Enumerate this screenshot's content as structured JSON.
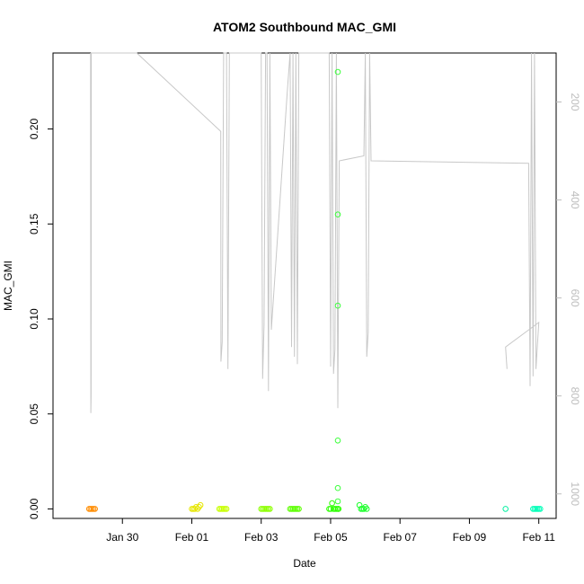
{
  "chart_data": {
    "type": "scatter",
    "title": "ATOM2 Southbound MAC_GMI",
    "xlabel": "Date",
    "ylabel": "MAC_GMI",
    "xlim": [
      "2019-01-28T00:00",
      "2019-02-11T12:00"
    ],
    "ylim": [
      -0.005,
      0.24
    ],
    "x_ticks": [
      {
        "value": "2019-01-30",
        "label": "Jan 30"
      },
      {
        "value": "2019-02-01",
        "label": "Feb 01"
      },
      {
        "value": "2019-02-03",
        "label": "Feb 03"
      },
      {
        "value": "2019-02-05",
        "label": "Feb 05"
      },
      {
        "value": "2019-02-07",
        "label": "Feb 07"
      },
      {
        "value": "2019-02-09",
        "label": "Feb 09"
      },
      {
        "value": "2019-02-11",
        "label": "Feb 11"
      }
    ],
    "y_ticks": [
      {
        "value": 0.0,
        "label": "0.00"
      },
      {
        "value": 0.05,
        "label": "0.05"
      },
      {
        "value": 0.1,
        "label": "0.10"
      },
      {
        "value": 0.15,
        "label": "0.15"
      },
      {
        "value": 0.2,
        "label": "0.20"
      }
    ],
    "right_axis": {
      "label": "",
      "range": [
        1050,
        100
      ],
      "ticks": [
        {
          "value": 200,
          "label": "200"
        },
        {
          "value": 400,
          "label": "400"
        },
        {
          "value": 600,
          "label": "600"
        },
        {
          "value": 800,
          "label": "800"
        },
        {
          "value": 1000,
          "label": "1000"
        }
      ],
      "color": "#bdbdbd"
    },
    "series": [
      {
        "color": "#ff8c00",
        "points": [
          [
            "2019-01-29T01:00",
            0.0
          ],
          [
            "2019-01-29T02:00",
            0.0
          ],
          [
            "2019-01-29T03:00",
            0.0
          ],
          [
            "2019-01-29T04:00",
            0.0
          ],
          [
            "2019-01-29T05:00",
            0.0
          ]
        ]
      },
      {
        "color": "#e6e600",
        "points": [
          [
            "2019-02-01T00:00",
            0.0
          ],
          [
            "2019-02-01T01:00",
            0.0
          ],
          [
            "2019-02-01T02:00",
            0.0
          ],
          [
            "2019-02-01T03:00",
            0.001
          ],
          [
            "2019-02-01T04:00",
            0.0
          ],
          [
            "2019-02-01T05:00",
            0.001
          ],
          [
            "2019-02-01T06:00",
            0.002
          ]
        ]
      },
      {
        "color": "#c8ff00",
        "points": [
          [
            "2019-02-01T19:00",
            0.0
          ],
          [
            "2019-02-01T20:00",
            0.0
          ],
          [
            "2019-02-01T21:00",
            0.0
          ],
          [
            "2019-02-01T22:00",
            0.0
          ],
          [
            "2019-02-01T23:00",
            0.0
          ],
          [
            "2019-02-02T00:00",
            0.0
          ]
        ]
      },
      {
        "color": "#8cff00",
        "points": [
          [
            "2019-02-03T00:00",
            0.0
          ],
          [
            "2019-02-03T01:00",
            0.0
          ],
          [
            "2019-02-03T02:00",
            0.0
          ],
          [
            "2019-02-03T03:00",
            0.0
          ],
          [
            "2019-02-03T04:00",
            0.0
          ],
          [
            "2019-02-03T05:00",
            0.0
          ],
          [
            "2019-02-03T06:00",
            0.0
          ]
        ]
      },
      {
        "color": "#5cff00",
        "points": [
          [
            "2019-02-03T20:00",
            0.0
          ],
          [
            "2019-02-03T21:00",
            0.0
          ],
          [
            "2019-02-03T22:00",
            0.0
          ],
          [
            "2019-02-03T23:00",
            0.0
          ],
          [
            "2019-02-04T00:00",
            0.0
          ],
          [
            "2019-02-04T01:00",
            0.0
          ],
          [
            "2019-02-04T02:00",
            0.0
          ]
        ]
      },
      {
        "color": "#2cff00",
        "points": [
          [
            "2019-02-04T23:00",
            0.0
          ],
          [
            "2019-02-05T00:00",
            0.0
          ],
          [
            "2019-02-05T01:00",
            0.003
          ],
          [
            "2019-02-05T02:00",
            0.0
          ],
          [
            "2019-02-05T03:00",
            0.0
          ],
          [
            "2019-02-05T04:00",
            0.0
          ],
          [
            "2019-02-05T05:00",
            0.0
          ],
          [
            "2019-02-05T05:30",
            0.0
          ]
        ]
      },
      {
        "color": "#3cff3c",
        "points": [
          [
            "2019-02-05T05:00",
            0.23
          ],
          [
            "2019-02-05T05:00",
            0.155
          ],
          [
            "2019-02-05T05:00",
            0.107
          ],
          [
            "2019-02-05T05:00",
            0.036
          ],
          [
            "2019-02-05T05:00",
            0.011
          ],
          [
            "2019-02-05T05:00",
            0.004
          ]
        ]
      },
      {
        "color": "#1aff2a",
        "points": [
          [
            "2019-02-05T20:00",
            0.002
          ],
          [
            "2019-02-05T21:00",
            0.0
          ],
          [
            "2019-02-05T22:00",
            0.0
          ],
          [
            "2019-02-05T23:00",
            0.0
          ],
          [
            "2019-02-06T00:00",
            0.001
          ],
          [
            "2019-02-06T01:00",
            0.0
          ]
        ]
      },
      {
        "color": "#00f0a0",
        "points": [
          [
            "2019-02-10T01:00",
            0.0
          ]
        ]
      },
      {
        "color": "#00ffb8",
        "points": [
          [
            "2019-02-10T20:00",
            0.0
          ],
          [
            "2019-02-10T21:00",
            0.0
          ],
          [
            "2019-02-10T22:00",
            0.0
          ],
          [
            "2019-02-10T23:00",
            0.0
          ],
          [
            "2019-02-11T00:00",
            0.0
          ],
          [
            "2019-02-11T01:00",
            0.0
          ]
        ]
      }
    ],
    "overlay_line": {
      "color": "#c8c8c8",
      "axis": "right",
      "points": [
        [
          "2019-01-29T02:00",
          100
        ],
        [
          "2019-01-29T02:10",
          835
        ],
        [
          "2019-01-29T02:20",
          800
        ],
        [
          "2019-01-29T02:30",
          100
        ],
        [
          "2019-01-30T10:00",
          100
        ],
        [
          "2019-02-01T20:00",
          260
        ],
        [
          "2019-02-01T20:10",
          730
        ],
        [
          "2019-02-01T21:00",
          690
        ],
        [
          "2019-02-01T22:00",
          100
        ],
        [
          "2019-02-02T00:00",
          100
        ],
        [
          "2019-02-02T01:00",
          745
        ],
        [
          "2019-02-02T02:00",
          100
        ],
        [
          "2019-02-02T22:00",
          100
        ],
        [
          "2019-02-03T00:00",
          100
        ],
        [
          "2019-02-03T01:00",
          765
        ],
        [
          "2019-02-03T02:00",
          655
        ],
        [
          "2019-02-03T03:00",
          100
        ],
        [
          "2019-02-03T04:00",
          100
        ],
        [
          "2019-02-03T05:00",
          790
        ],
        [
          "2019-02-03T06:00",
          100
        ],
        [
          "2019-02-03T07:00",
          665
        ],
        [
          "2019-02-03T18:00",
          180
        ],
        [
          "2019-02-03T20:00",
          100
        ],
        [
          "2019-02-03T21:00",
          700
        ],
        [
          "2019-02-03T22:00",
          100
        ],
        [
          "2019-02-03T23:00",
          720
        ],
        [
          "2019-02-04T00:00",
          100
        ],
        [
          "2019-02-04T01:00",
          735
        ],
        [
          "2019-02-04T02:00",
          100
        ],
        [
          "2019-02-04T23:00",
          100
        ],
        [
          "2019-02-05T00:00",
          740
        ],
        [
          "2019-02-05T01:00",
          100
        ],
        [
          "2019-02-05T02:00",
          755
        ],
        [
          "2019-02-05T03:00",
          705
        ],
        [
          "2019-02-05T04:00",
          100
        ],
        [
          "2019-02-05T05:00",
          825
        ],
        [
          "2019-02-05T06:00",
          320
        ],
        [
          "2019-02-05T23:00",
          310
        ],
        [
          "2019-02-06T00:00",
          100
        ],
        [
          "2019-02-06T01:00",
          720
        ],
        [
          "2019-02-06T02:00",
          670
        ],
        [
          "2019-02-06T03:00",
          100
        ],
        [
          "2019-02-06T04:00",
          320
        ],
        [
          "2019-02-10T17:00",
          325
        ],
        [
          "2019-02-10T18:00",
          780
        ],
        [
          "2019-02-10T19:00",
          100
        ],
        [
          "2019-02-10T20:00",
          760
        ],
        [
          "2019-02-10T21:00",
          100
        ],
        [
          "2019-02-10T22:00",
          745
        ],
        [
          "2019-02-11T00:00",
          650
        ],
        [
          "2019-02-10T01:00",
          700
        ],
        [
          "2019-02-10T02:00",
          745
        ]
      ]
    },
    "grid": false,
    "legend": "none"
  }
}
